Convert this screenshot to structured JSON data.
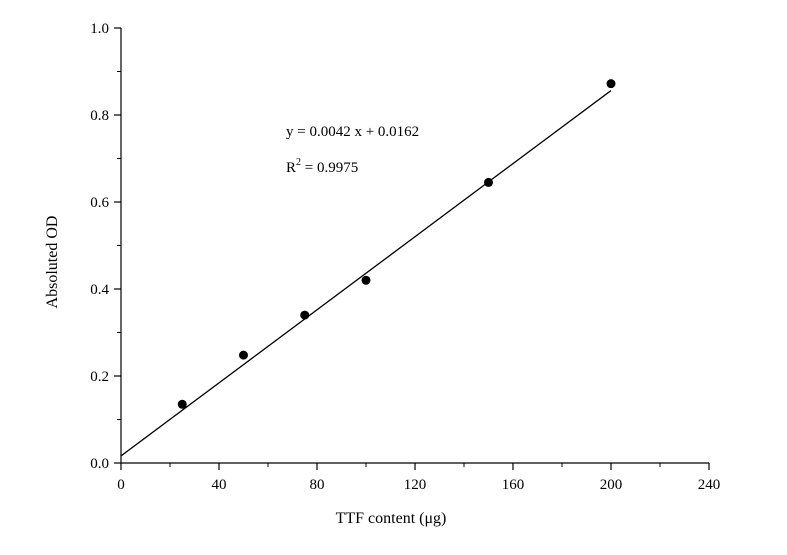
{
  "chart_data": {
    "type": "scatter",
    "xlabel": "TTF content (μg)",
    "ylabel": "Absoluted OD",
    "xlim": [
      0,
      240
    ],
    "ylim": [
      0,
      1.0
    ],
    "x_ticks": [
      0,
      40,
      80,
      120,
      160,
      200,
      240
    ],
    "x_tick_labels": [
      "0",
      "40",
      "80",
      "120",
      "160",
      "200",
      "240"
    ],
    "y_ticks": [
      0,
      0.2,
      0.4,
      0.6,
      0.8,
      1.0
    ],
    "y_tick_labels": [
      "0.0",
      "0.2",
      "0.4",
      "0.6",
      "0.8",
      "1.0"
    ],
    "grid": false,
    "points": [
      {
        "x": 25,
        "y": 0.135
      },
      {
        "x": 50,
        "y": 0.248
      },
      {
        "x": 75,
        "y": 0.34
      },
      {
        "x": 100,
        "y": 0.42
      },
      {
        "x": 150,
        "y": 0.645
      },
      {
        "x": 200,
        "y": 0.872
      }
    ],
    "fit_line": {
      "slope": 0.0042,
      "intercept": 0.0162,
      "x_from": 0,
      "x_to": 200
    },
    "annotations": {
      "equation": "y = 0.0042 x + 0.0162",
      "r2_prefix": "R",
      "r2_sup": "2",
      "r2_value": " = 0.9975"
    }
  }
}
